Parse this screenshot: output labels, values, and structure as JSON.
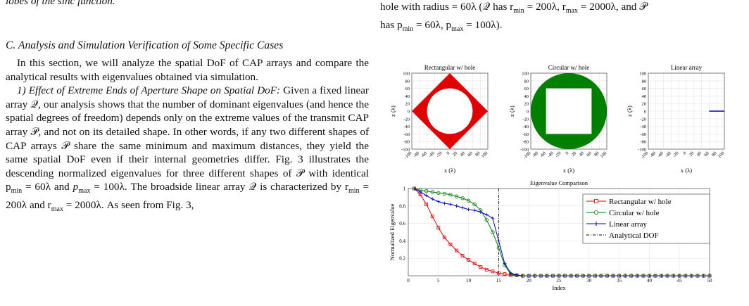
{
  "left": {
    "top_fragment": "lobes of the sinc function.",
    "section_title": "C. Analysis and Simulation Verification of Some Specific Cases",
    "para1": "In this section, we will analyze the spatial DoF of CAP arrays and compare the analytical results with eigenvalues obtained via simulation.",
    "para2_heading": "1) Effect of Extreme Ends of Aperture Shape on Spatial DoF:",
    "para2_body": "Given a fixed linear array 𝒬, our analysis shows that the number of dominant eigenvalues (and hence the spatial degrees of freedom) depends only on the extreme values of the transmit CAP array 𝒫, and not on its detailed shape. In other words, if any two different shapes of CAP arrays 𝒫 share the same minimum and maximum distances, they yield the same spatial DoF even if their internal geometries differ. Fig. 3 illustrates the descending normalized eigenvalues for three different shapes of 𝒫 with identical p",
    "para2_tail": "by r",
    "p_min": "min",
    "p_max": "max"
  },
  "right": {
    "caption_line1": "hole with radius = 60λ (𝒬 has r",
    "caption_line1b": " = 200λ, r",
    "caption_line1c": " = 2000λ, and 𝒫",
    "caption_line2": "has p",
    "caption_line2b": " = 60λ, p",
    "caption_line2c": " = 100λ).",
    "min": "min",
    "max": "max"
  },
  "subplots": [
    {
      "title": "Rectangular w/ hole",
      "xlabel": "x (λ)",
      "ylabel": "z (λ)",
      "color": "#e00000"
    },
    {
      "title": "Circular w/ hole",
      "xlabel": "x (λ)",
      "ylabel": "z (λ)",
      "color": "#008000"
    },
    {
      "title": "Linear array",
      "xlabel": "x (λ)",
      "ylabel": "z (λ)",
      "color": "#0000cc"
    }
  ],
  "axis_ticks": [
    "100",
    "80",
    "60",
    "40",
    "20",
    "0",
    "-20",
    "-40",
    "-60",
    "-80",
    "-100"
  ],
  "x_ticks": [
    "-100",
    "-80",
    "-60",
    "-40",
    "-20",
    "0",
    "20",
    "40",
    "60",
    "80",
    "100"
  ],
  "chart_data": {
    "type": "line",
    "title": "Eigenvalue Comparison",
    "xlabel": "Index",
    "ylabel": "Normalized Eigenvalue",
    "xlim": [
      0,
      50
    ],
    "ylim": [
      0,
      1
    ],
    "x_ticks": [
      0,
      5,
      10,
      15,
      20,
      25,
      30,
      35,
      40,
      45,
      50
    ],
    "y_ticks": [
      0.2,
      0.4,
      0.6,
      0.8,
      1
    ],
    "grid": true,
    "legend_position": "top-right",
    "analytical_dof": 15,
    "series": [
      {
        "name": "Rectangular w/ hole",
        "color": "#e00000",
        "marker": "square",
        "values": [
          1,
          0.93,
          0.82,
          0.68,
          0.55,
          0.44,
          0.36,
          0.29,
          0.23,
          0.18,
          0.14,
          0.1,
          0.07,
          0.05,
          0.03,
          0.02,
          0.01,
          0.005,
          0,
          0,
          0,
          0,
          0,
          0,
          0,
          0,
          0,
          0,
          0,
          0,
          0,
          0,
          0,
          0,
          0,
          0,
          0,
          0,
          0,
          0,
          0,
          0,
          0,
          0,
          0,
          0,
          0,
          0,
          0,
          0
        ]
      },
      {
        "name": "Circular w/ hole",
        "color": "#008000",
        "marker": "circle",
        "values": [
          1,
          0.98,
          0.97,
          0.96,
          0.95,
          0.94,
          0.93,
          0.91,
          0.89,
          0.86,
          0.82,
          0.75,
          0.64,
          0.5,
          0.32,
          0.12,
          0.02,
          0.005,
          0,
          0,
          0,
          0,
          0,
          0,
          0,
          0,
          0,
          0,
          0,
          0,
          0,
          0,
          0,
          0,
          0,
          0,
          0,
          0,
          0,
          0,
          0,
          0,
          0,
          0,
          0,
          0,
          0,
          0,
          0,
          0
        ]
      },
      {
        "name": "Linear array",
        "color": "#0000cc",
        "marker": "plus",
        "values": [
          1,
          0.96,
          0.92,
          0.88,
          0.85,
          0.83,
          0.82,
          0.8,
          0.78,
          0.76,
          0.75,
          0.73,
          0.7,
          0.66,
          0.4,
          0.14,
          0.03,
          0.01,
          0,
          0,
          0,
          0,
          0,
          0,
          0,
          0,
          0,
          0,
          0,
          0,
          0,
          0,
          0,
          0,
          0,
          0,
          0,
          0,
          0,
          0,
          0,
          0,
          0,
          0,
          0,
          0,
          0,
          0,
          0,
          0
        ]
      },
      {
        "name": "Analytical DOF",
        "color": "#000000",
        "marker": "dashdot",
        "values": []
      }
    ]
  }
}
